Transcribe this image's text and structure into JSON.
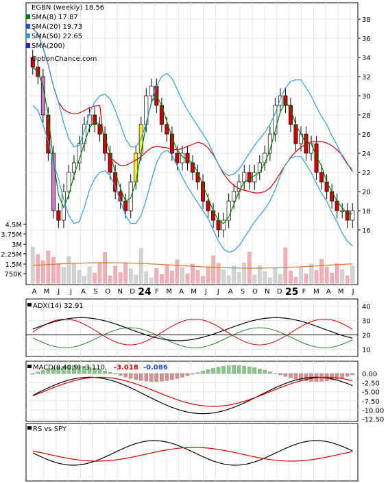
{
  "chart_data": [
    {
      "type": "candlestick",
      "panel": "price",
      "legend": [
        {
          "label": "EGBN (weekly) 18.56",
          "color": "#000000"
        },
        {
          "label": "SMA(8) 17.87",
          "color": "#008000"
        },
        {
          "label": "SMA(20) 19.73",
          "color": "#1f4fcf"
        },
        {
          "label": "SMA(50) 22.65",
          "color": "#3399dd"
        },
        {
          "label": "SMA(200)",
          "color": "#2222cc"
        }
      ],
      "watermark": "OptionChance.com",
      "y_ticks": [
        38,
        36,
        34,
        32,
        30,
        28,
        26,
        24,
        22,
        20,
        18,
        16
      ],
      "ylim": [
        15,
        39
      ],
      "volume_ticks": [
        "4.5M",
        "3.75M",
        "3M",
        "2.25M",
        "1.5M",
        "750K"
      ],
      "x_labels": [
        "A",
        "M",
        "J",
        "J",
        "A",
        "S",
        "O",
        "N",
        "D",
        "24",
        "F",
        "M",
        "A",
        "M",
        "J",
        "J",
        "A",
        "S",
        "O",
        "N",
        "D",
        "25",
        "F",
        "M",
        "A",
        "M",
        "J"
      ],
      "close": [
        33,
        32,
        28,
        24,
        18,
        17,
        20,
        22,
        23,
        25,
        27,
        28,
        27,
        26,
        24,
        22,
        20,
        19,
        18,
        21,
        24,
        27,
        30,
        31,
        29,
        27,
        26,
        24,
        23,
        24,
        23,
        22,
        21,
        19,
        18,
        17,
        16,
        17,
        19,
        20,
        21,
        22,
        21,
        22,
        23,
        24,
        26,
        29,
        30,
        29,
        27,
        25,
        26,
        24,
        25,
        22,
        21,
        20,
        19,
        18,
        18,
        17,
        18
      ]
    },
    {
      "type": "line",
      "panel": "ADX",
      "title": "ADX(14) 32.91",
      "y_ticks": [
        40,
        30,
        20,
        10
      ]
    },
    {
      "type": "histogram",
      "panel": "MACD",
      "title": "MACD(8,40,9) -3.110,",
      "values": [
        "-3.018",
        "-0.086"
      ],
      "y_ticks": [
        "0.00",
        "-2.50",
        "-5.00",
        "-7.50",
        "-10.00",
        "-12.50"
      ]
    },
    {
      "type": "line",
      "panel": "RS",
      "title": "RS vs SPY"
    }
  ],
  "colors": {
    "up": "#ffffff",
    "down": "#cc0000",
    "yellow": "#ffee33",
    "purple": "#cc77cc",
    "sma8": "#008000",
    "sma20": "#3399dd",
    "sma50": "#cc0000",
    "vol": "#f0b0b8",
    "volAvg": "#e07020",
    "adx": "#000000",
    "dip": "#cc0000",
    "dim": "#2a7a2a",
    "macd": "#000000",
    "signal": "#cc0000",
    "histPos": "#8ac78a",
    "histNeg": "#d69090"
  }
}
